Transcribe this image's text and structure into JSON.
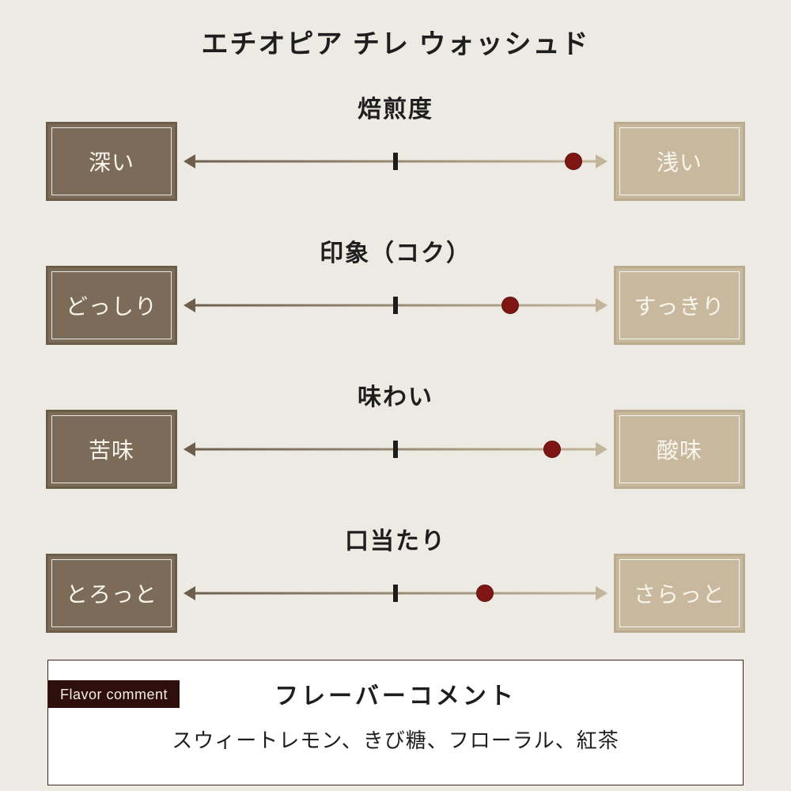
{
  "page": {
    "title": "エチオピア チレ ウォッシュド",
    "colors": {
      "background": "#ECEAE3",
      "left_box": "#7B6B58",
      "right_box": "#C7B89E",
      "dot": "#7E1614",
      "tick": "#1C1C1C",
      "line_left": "#6E5F4D",
      "line_right": "#C3B59C",
      "badge_bg": "#2E0F0C",
      "text_dark": "#1E1E1E"
    }
  },
  "scales": [
    {
      "title": "焙煎度",
      "left_label": "深い",
      "right_label": "浅い",
      "value_percent": 92
    },
    {
      "title": "印象（コク）",
      "left_label": "どっしり",
      "right_label": "すっきり",
      "value_percent": 77
    },
    {
      "title": "味わい",
      "left_label": "苦味",
      "right_label": "酸味",
      "value_percent": 87
    },
    {
      "title": "口当たり",
      "left_label": "とろっと",
      "right_label": "さらっと",
      "value_percent": 71
    }
  ],
  "flavor_comment": {
    "badge": "Flavor comment",
    "heading": "フレーバーコメント",
    "text": "スウィートレモン、きび糖、フローラル、紅茶"
  },
  "chart_data": {
    "type": "table",
    "title": "エチオピア チレ ウォッシュド",
    "description": "Coffee flavor profile with four bipolar slider scales; marker position measured as % from left end toward right end",
    "rows": [
      {
        "attribute": "焙煎度",
        "left_end": "深い",
        "right_end": "浅い",
        "value_percent_toward_right": 92
      },
      {
        "attribute": "印象（コク）",
        "left_end": "どっしり",
        "right_end": "すっきり",
        "value_percent_toward_right": 77
      },
      {
        "attribute": "味わい",
        "left_end": "苦味",
        "right_end": "酸味",
        "value_percent_toward_right": 87
      },
      {
        "attribute": "口当たり",
        "left_end": "とろっと",
        "right_end": "さらっと",
        "value_percent_toward_right": 71
      }
    ],
    "annotations": [
      "Flavor comment",
      "フレーバーコメント",
      "スウィートレモン、きび糖、フローラル、紅茶"
    ]
  }
}
